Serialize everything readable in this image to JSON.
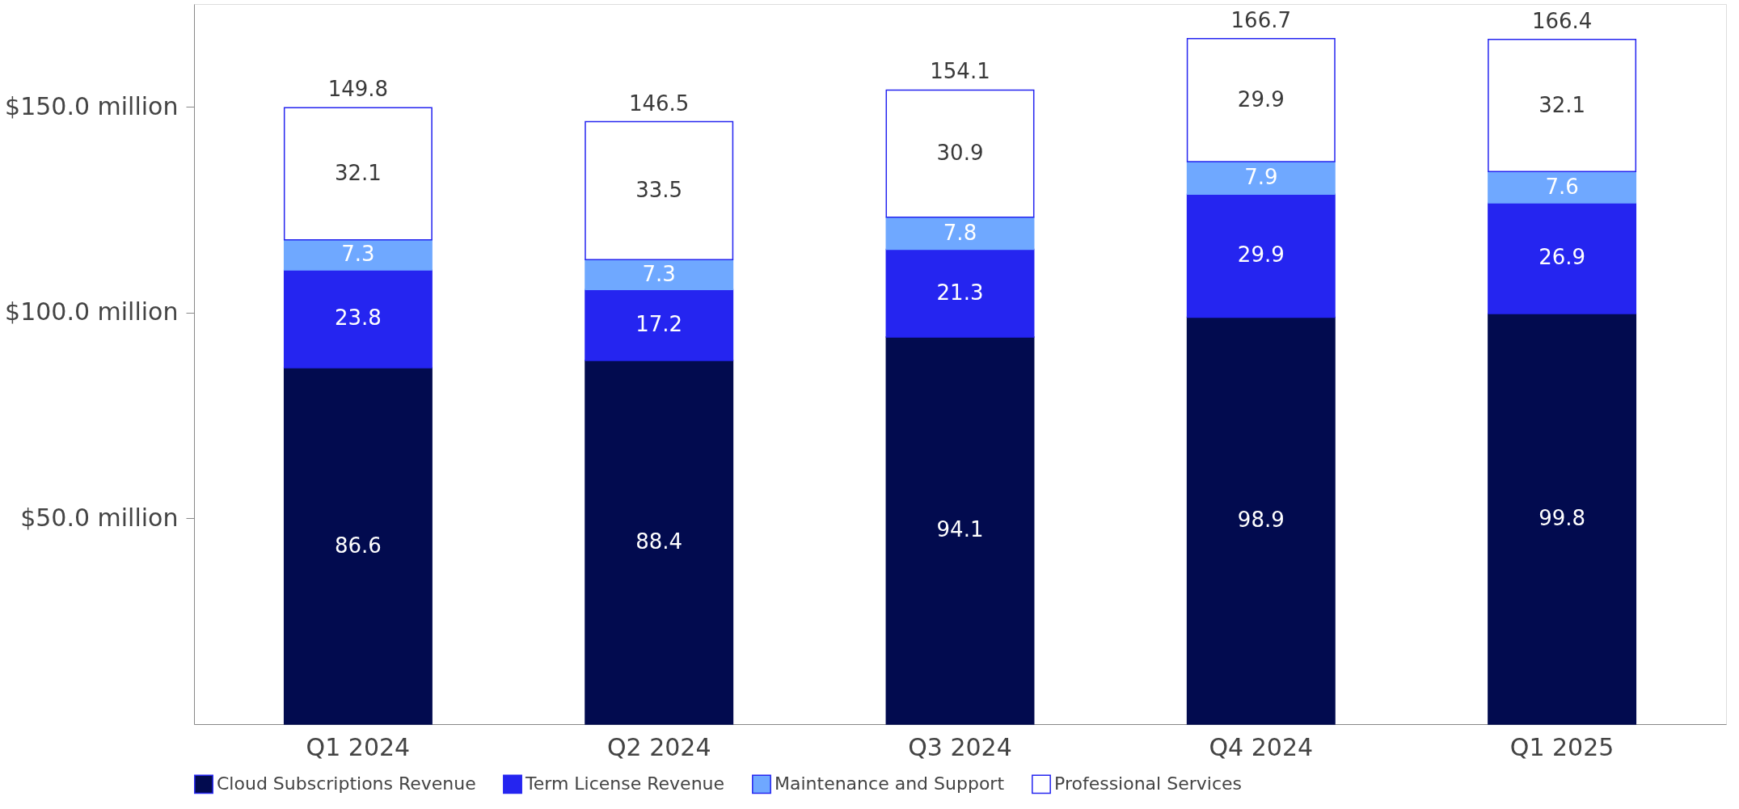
{
  "chart_data": {
    "type": "bar",
    "stacked": true,
    "categories": [
      "Q1 2024",
      "Q2 2024",
      "Q3 2024",
      "Q4 2024",
      "Q1 2025"
    ],
    "series": [
      {
        "name": "Cloud Subscriptions Revenue",
        "color": "#020b4f",
        "values": [
          86.6,
          88.4,
          94.1,
          98.9,
          99.8
        ]
      },
      {
        "name": "Term License Revenue",
        "color": "#2525f0",
        "values": [
          23.8,
          17.2,
          21.3,
          29.9,
          26.9
        ]
      },
      {
        "name": "Maintenance and Support",
        "color": "#6fa8ff",
        "values": [
          7.3,
          7.3,
          7.8,
          7.9,
          7.6
        ]
      },
      {
        "name": "Professional Services",
        "color": "#ffffff",
        "values": [
          32.1,
          33.5,
          30.9,
          29.9,
          32.1
        ]
      }
    ],
    "totals": [
      "149.8",
      "146.5",
      "154.1",
      "166.7",
      "166.4"
    ],
    "data_labels": true,
    "ylim": [
      0,
      175
    ],
    "yticks": [
      {
        "value": 50,
        "label": "$50.0 million"
      },
      {
        "value": 100,
        "label": "$100.0 million"
      },
      {
        "value": 150,
        "label": "$150.0 million"
      }
    ],
    "grid": false,
    "legend": "bottom"
  }
}
